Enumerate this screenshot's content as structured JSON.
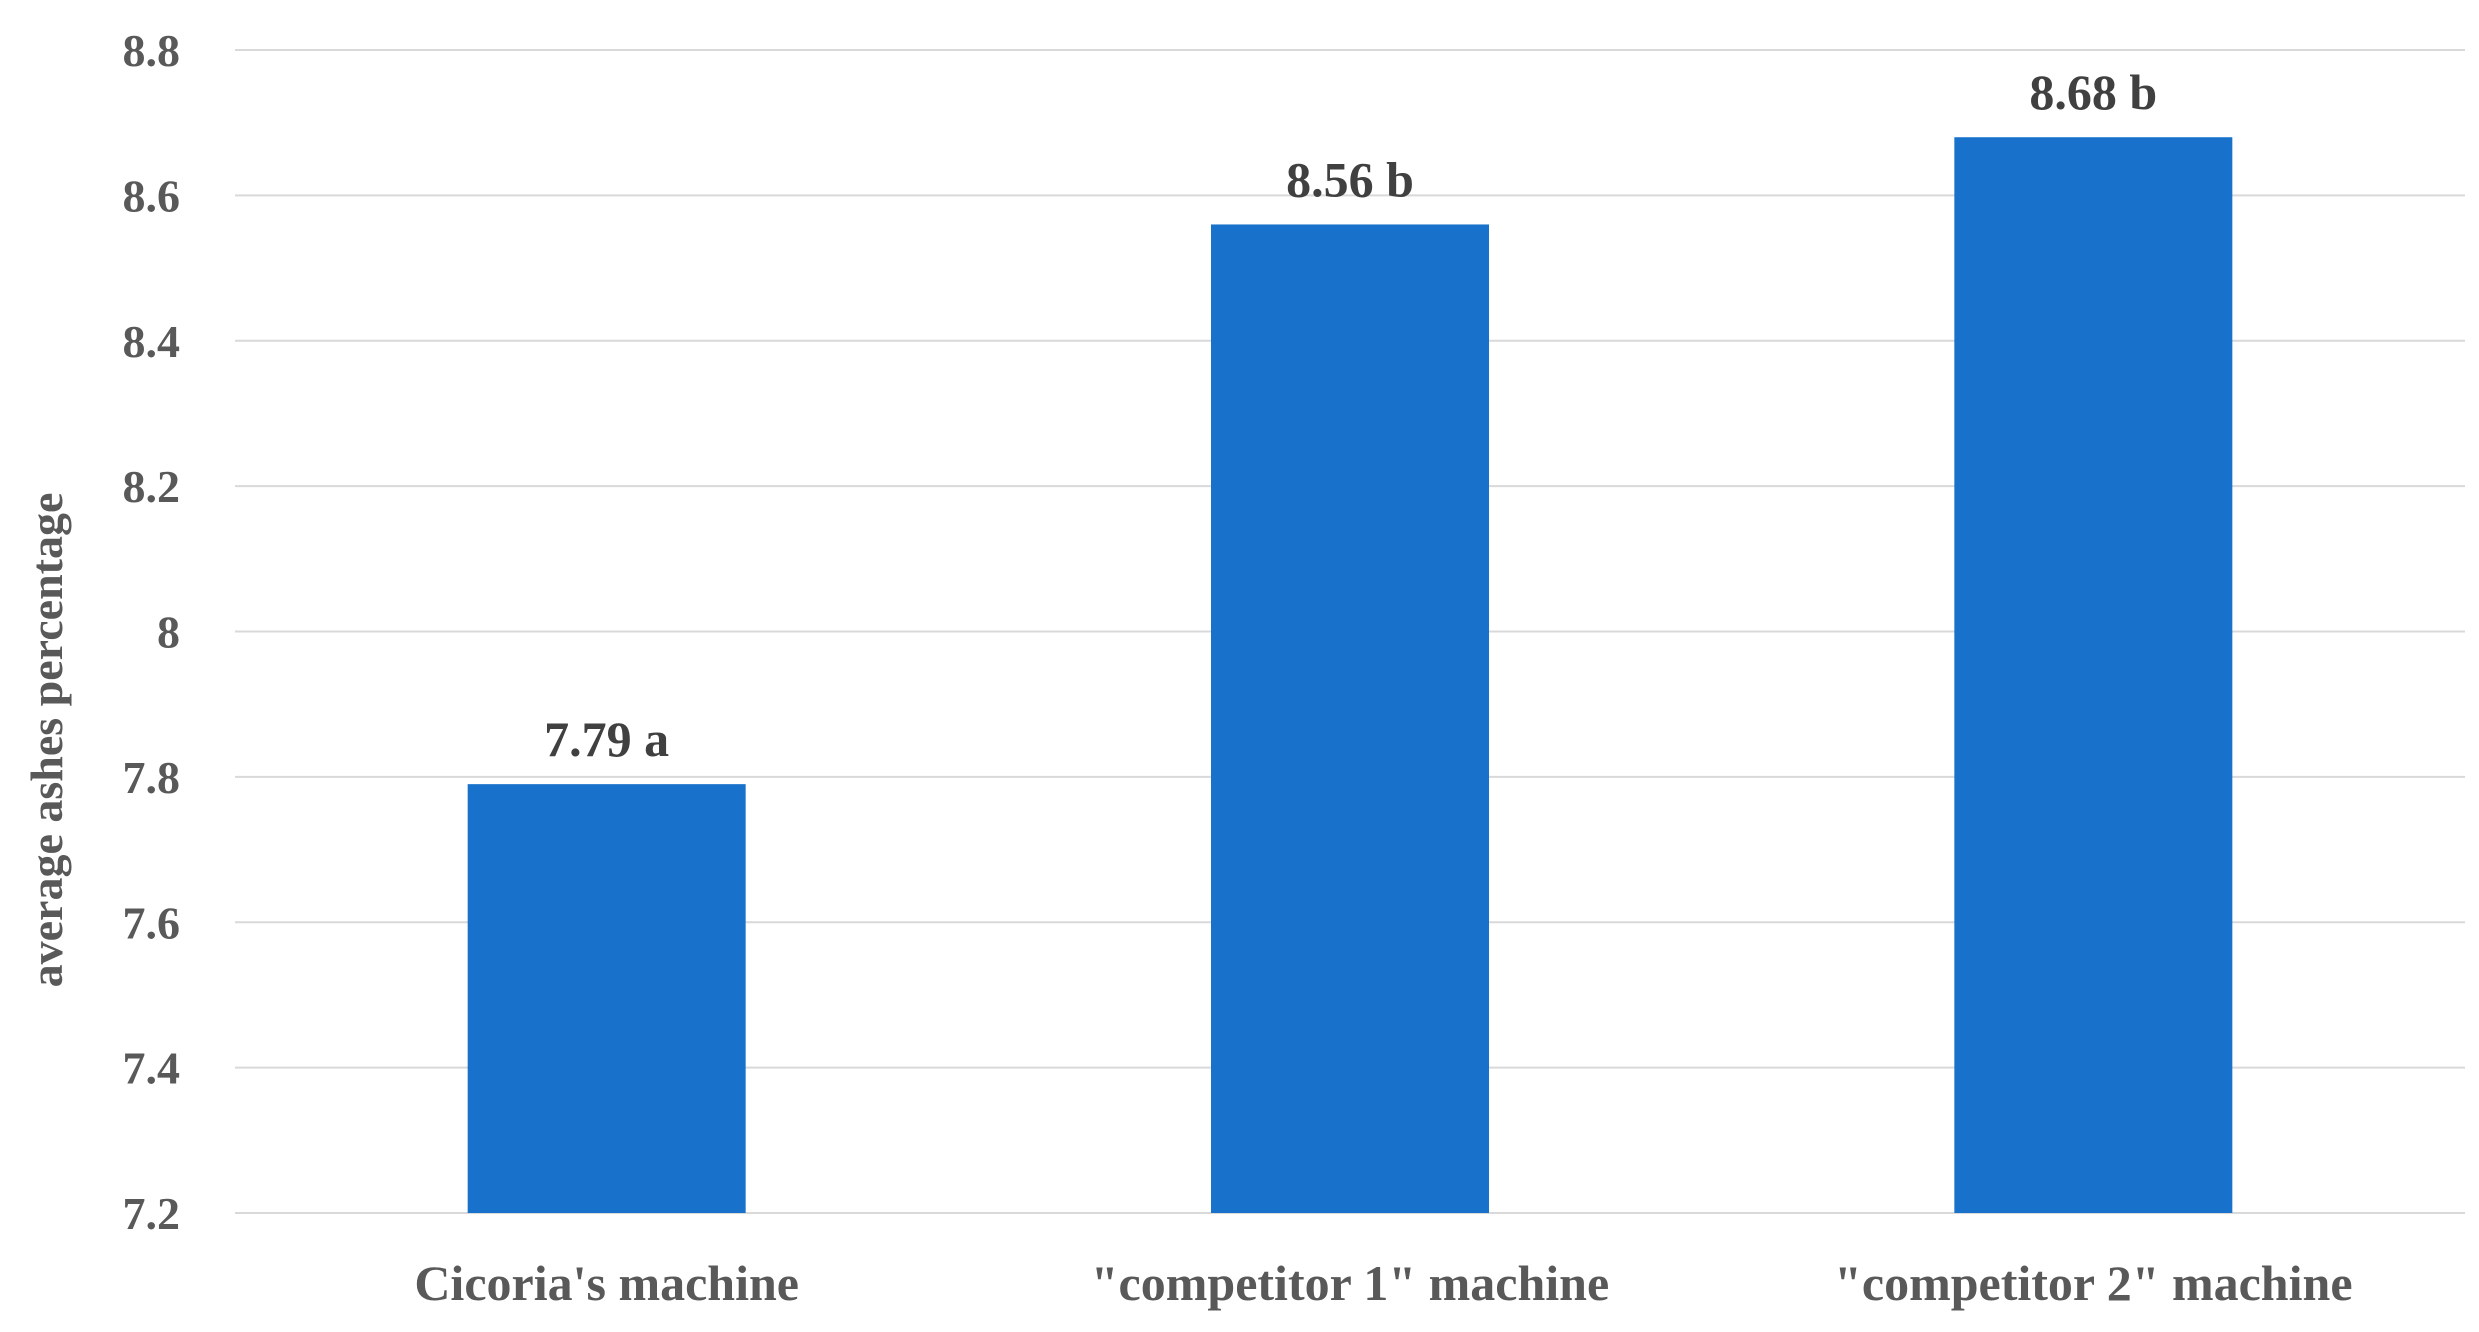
{
  "chart_data": {
    "type": "bar",
    "title": "",
    "xlabel": "",
    "ylabel": "average ashes percentage",
    "categories": [
      "Cicoria's machine",
      "\"competitor 1\" machine",
      "\"competitor 2\" machine"
    ],
    "values": [
      7.79,
      8.56,
      8.68
    ],
    "data_labels": [
      "7.79 a",
      "8.56 b",
      "8.68 b"
    ],
    "ylim": [
      7.2,
      8.8
    ],
    "yticks": [
      7.2,
      7.4,
      7.6,
      7.8,
      8,
      8.2,
      8.4,
      8.6,
      8.8
    ],
    "ytick_labels": [
      "7.2",
      "7.4",
      "7.6",
      "7.8",
      "8",
      "8.2",
      "8.4",
      "8.6",
      "8.8"
    ],
    "grid": true,
    "legend": "none",
    "bar_color": "#1872CB",
    "grid_color": "#D9D9D9",
    "text_color": "#595959"
  }
}
